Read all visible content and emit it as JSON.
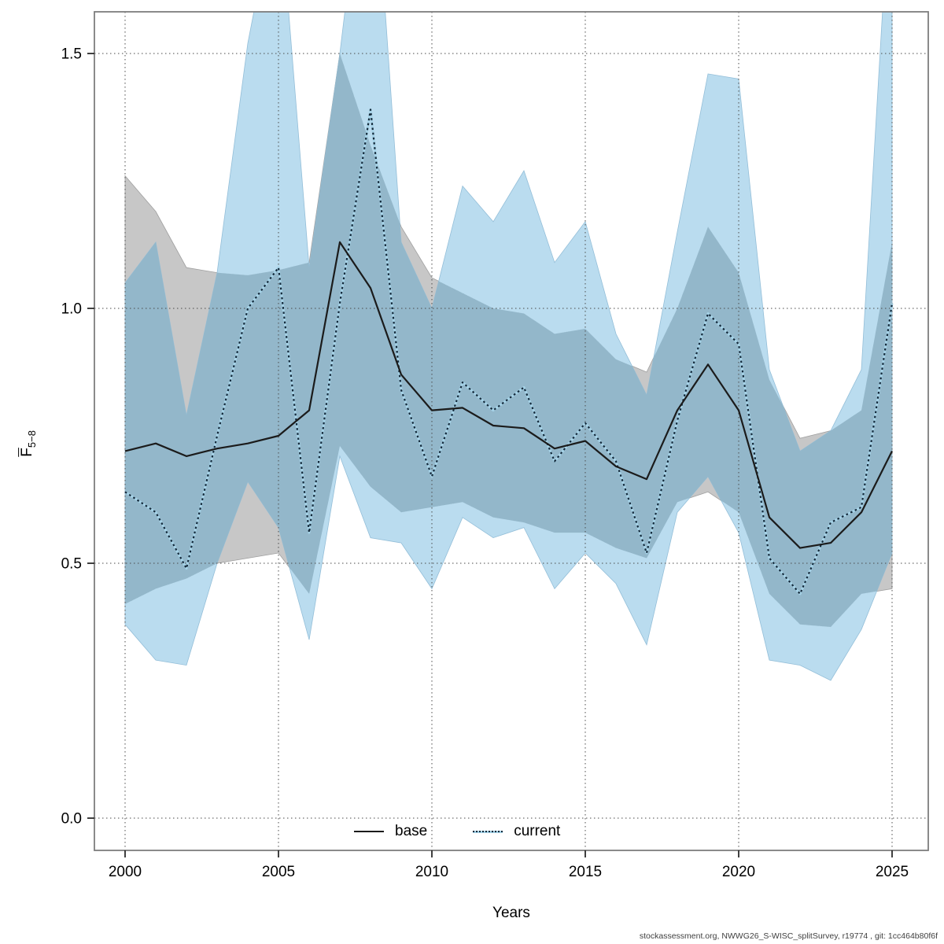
{
  "chart_data": {
    "type": "line",
    "title": "",
    "xlabel": "Years",
    "ylabel_base": "F",
    "ylabel_sub": "5−8",
    "grid": true,
    "legend_position": "bottom-center-inside",
    "x_ticks": [
      2000,
      2005,
      2010,
      2015,
      2020,
      2025
    ],
    "y_ticks": [
      0.0,
      0.5,
      1.0,
      1.5
    ],
    "y_tick_labels": [
      "0.0",
      "0.5",
      "1.0",
      "1.5"
    ],
    "xlim": [
      1999.0,
      2026.2
    ],
    "ylim": [
      -0.06,
      1.58
    ],
    "years": [
      2000,
      2001,
      2002,
      2003,
      2004,
      2005,
      2006,
      2007,
      2008,
      2009,
      2010,
      2011,
      2012,
      2013,
      2014,
      2015,
      2016,
      2017,
      2018,
      2019,
      2020,
      2021,
      2022,
      2023,
      2024,
      2025
    ],
    "series": [
      {
        "name": "base",
        "line_style": "solid",
        "line_color": "#1b1b1b",
        "band_color": "#c7c7c7",
        "band_edge": "#9f9f9f",
        "values": [
          0.72,
          0.735,
          0.71,
          0.725,
          0.735,
          0.75,
          0.8,
          1.13,
          1.04,
          0.87,
          0.8,
          0.805,
          0.77,
          0.765,
          0.725,
          0.74,
          0.69,
          0.665,
          0.8,
          0.89,
          0.8,
          0.59,
          0.53,
          0.54,
          0.6,
          0.72
        ],
        "lo": [
          0.42,
          0.45,
          0.47,
          0.5,
          0.51,
          0.52,
          0.44,
          0.73,
          0.65,
          0.6,
          0.61,
          0.62,
          0.59,
          0.58,
          0.56,
          0.56,
          0.53,
          0.51,
          0.62,
          0.64,
          0.6,
          0.44,
          0.38,
          0.375,
          0.44,
          0.45
        ],
        "hi": [
          1.26,
          1.19,
          1.08,
          1.07,
          1.065,
          1.075,
          1.09,
          1.5,
          1.32,
          1.16,
          1.06,
          1.03,
          1.0,
          0.99,
          0.95,
          0.96,
          0.9,
          0.875,
          1.0,
          1.16,
          1.07,
          0.86,
          0.745,
          0.76,
          0.8,
          1.13
        ]
      },
      {
        "name": "current",
        "line_style": "dotted",
        "line_color": "#14293a",
        "line_halo": "#a6d3e8",
        "band_color": "#badcef",
        "band_edge": "#93bed8",
        "values": [
          0.64,
          0.6,
          0.49,
          0.75,
          1.0,
          1.08,
          0.56,
          1.01,
          1.39,
          0.84,
          0.67,
          0.855,
          0.8,
          0.845,
          0.7,
          0.775,
          0.7,
          0.52,
          0.78,
          0.99,
          0.93,
          0.51,
          0.44,
          0.58,
          0.61,
          1.01
        ],
        "lo": [
          0.38,
          0.31,
          0.3,
          0.5,
          0.66,
          0.57,
          0.35,
          0.71,
          0.55,
          0.54,
          0.45,
          0.59,
          0.55,
          0.57,
          0.45,
          0.52,
          0.46,
          0.34,
          0.6,
          0.67,
          0.56,
          0.31,
          0.3,
          0.27,
          0.37,
          0.52
        ],
        "hi": [
          1.05,
          1.13,
          0.79,
          1.07,
          1.52,
          1.83,
          1.08,
          1.5,
          2.0,
          1.13,
          1.0,
          1.24,
          1.17,
          1.27,
          1.09,
          1.17,
          0.95,
          0.83,
          1.15,
          1.46,
          1.45,
          0.88,
          0.72,
          0.76,
          0.88,
          1.9
        ]
      }
    ],
    "overlap_color": "#93b7ca",
    "grid_color": "#4a4a4a",
    "border_color": "#7d7d7d",
    "tick_color": "#2b2b2b"
  },
  "legend": {
    "base_label": "base",
    "current_label": "current"
  },
  "footer": "stockassessment.org, NWWG26_S-WISC_splitSurvey, r19774 , git: 1cc464b80f6f"
}
